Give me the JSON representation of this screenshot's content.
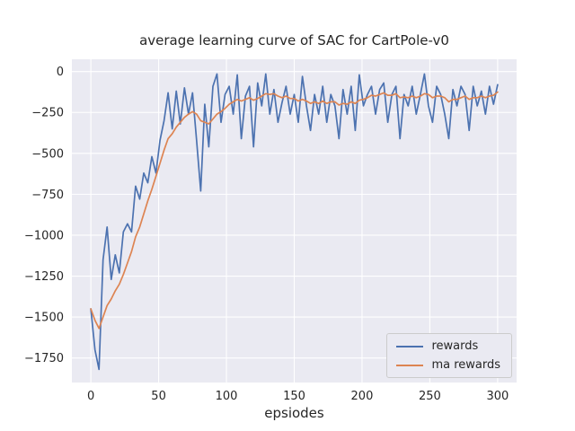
{
  "chart_data": {
    "type": "line",
    "title": "average learning curve of SAC for CartPole-v0",
    "xlabel": "epsiodes",
    "ylabel": "",
    "grid": true,
    "legend_position": "lower right",
    "background": "#eaeaf2",
    "grid_color": "#ffffff",
    "text_color": "#262626",
    "xlim": [
      -14,
      314
    ],
    "ylim": [
      -1900,
      75
    ],
    "xticks": [
      0,
      50,
      100,
      150,
      200,
      250,
      300
    ],
    "yticks": [
      0,
      -250,
      -500,
      -750,
      -1000,
      -1250,
      -1500,
      -1750
    ],
    "x": [
      0,
      3,
      6,
      9,
      12,
      15,
      18,
      21,
      24,
      27,
      30,
      33,
      36,
      39,
      42,
      45,
      48,
      51,
      54,
      57,
      60,
      63,
      66,
      69,
      72,
      75,
      78,
      81,
      84,
      87,
      90,
      93,
      96,
      99,
      102,
      105,
      108,
      111,
      114,
      117,
      120,
      123,
      126,
      129,
      132,
      135,
      138,
      141,
      144,
      147,
      150,
      153,
      156,
      159,
      162,
      165,
      168,
      171,
      174,
      177,
      180,
      183,
      186,
      189,
      192,
      195,
      198,
      201,
      204,
      207,
      210,
      213,
      216,
      219,
      222,
      225,
      228,
      231,
      234,
      237,
      240,
      243,
      246,
      249,
      252,
      255,
      258,
      261,
      264,
      267,
      270,
      273,
      276,
      279,
      282,
      285,
      288,
      291,
      294,
      297,
      300
    ],
    "series": [
      {
        "name": "rewards",
        "color": "#4C72B0",
        "values": [
          -1450,
          -1700,
          -1820,
          -1150,
          -950,
          -1270,
          -1120,
          -1230,
          -980,
          -930,
          -980,
          -700,
          -780,
          -620,
          -680,
          -520,
          -620,
          -420,
          -300,
          -130,
          -350,
          -120,
          -320,
          -100,
          -260,
          -130,
          -420,
          -730,
          -200,
          -460,
          -90,
          -15,
          -310,
          -140,
          -90,
          -260,
          -20,
          -410,
          -150,
          -90,
          -460,
          -70,
          -210,
          -15,
          -260,
          -110,
          -310,
          -190,
          -90,
          -260,
          -140,
          -310,
          -30,
          -210,
          -360,
          -140,
          -260,
          -90,
          -310,
          -140,
          -210,
          -410,
          -110,
          -260,
          -90,
          -360,
          -20,
          -210,
          -140,
          -90,
          -260,
          -110,
          -70,
          -310,
          -140,
          -90,
          -410,
          -140,
          -210,
          -90,
          -260,
          -140,
          -15,
          -210,
          -310,
          -90,
          -140,
          -260,
          -410,
          -110,
          -210,
          -90,
          -140,
          -360,
          -90,
          -210,
          -120,
          -260,
          -90,
          -200,
          -80
        ]
      },
      {
        "name": "ma rewards",
        "color": "#DD8452",
        "values": [
          -1450,
          -1520,
          -1570,
          -1500,
          -1430,
          -1390,
          -1340,
          -1300,
          -1240,
          -1170,
          -1100,
          -1010,
          -950,
          -870,
          -790,
          -720,
          -640,
          -560,
          -480,
          -410,
          -380,
          -340,
          -310,
          -280,
          -260,
          -245,
          -260,
          -300,
          -310,
          -320,
          -290,
          -260,
          -245,
          -225,
          -200,
          -185,
          -170,
          -180,
          -170,
          -160,
          -175,
          -165,
          -150,
          -135,
          -140,
          -135,
          -150,
          -160,
          -150,
          -165,
          -165,
          -180,
          -170,
          -180,
          -195,
          -185,
          -195,
          -180,
          -195,
          -185,
          -185,
          -205,
          -195,
          -200,
          -185,
          -195,
          -175,
          -170,
          -160,
          -145,
          -150,
          -140,
          -130,
          -145,
          -145,
          -135,
          -160,
          -155,
          -160,
          -150,
          -160,
          -150,
          -135,
          -140,
          -160,
          -150,
          -150,
          -160,
          -185,
          -170,
          -170,
          -160,
          -150,
          -170,
          -160,
          -160,
          -150,
          -160,
          -150,
          -145,
          -125
        ]
      }
    ]
  }
}
